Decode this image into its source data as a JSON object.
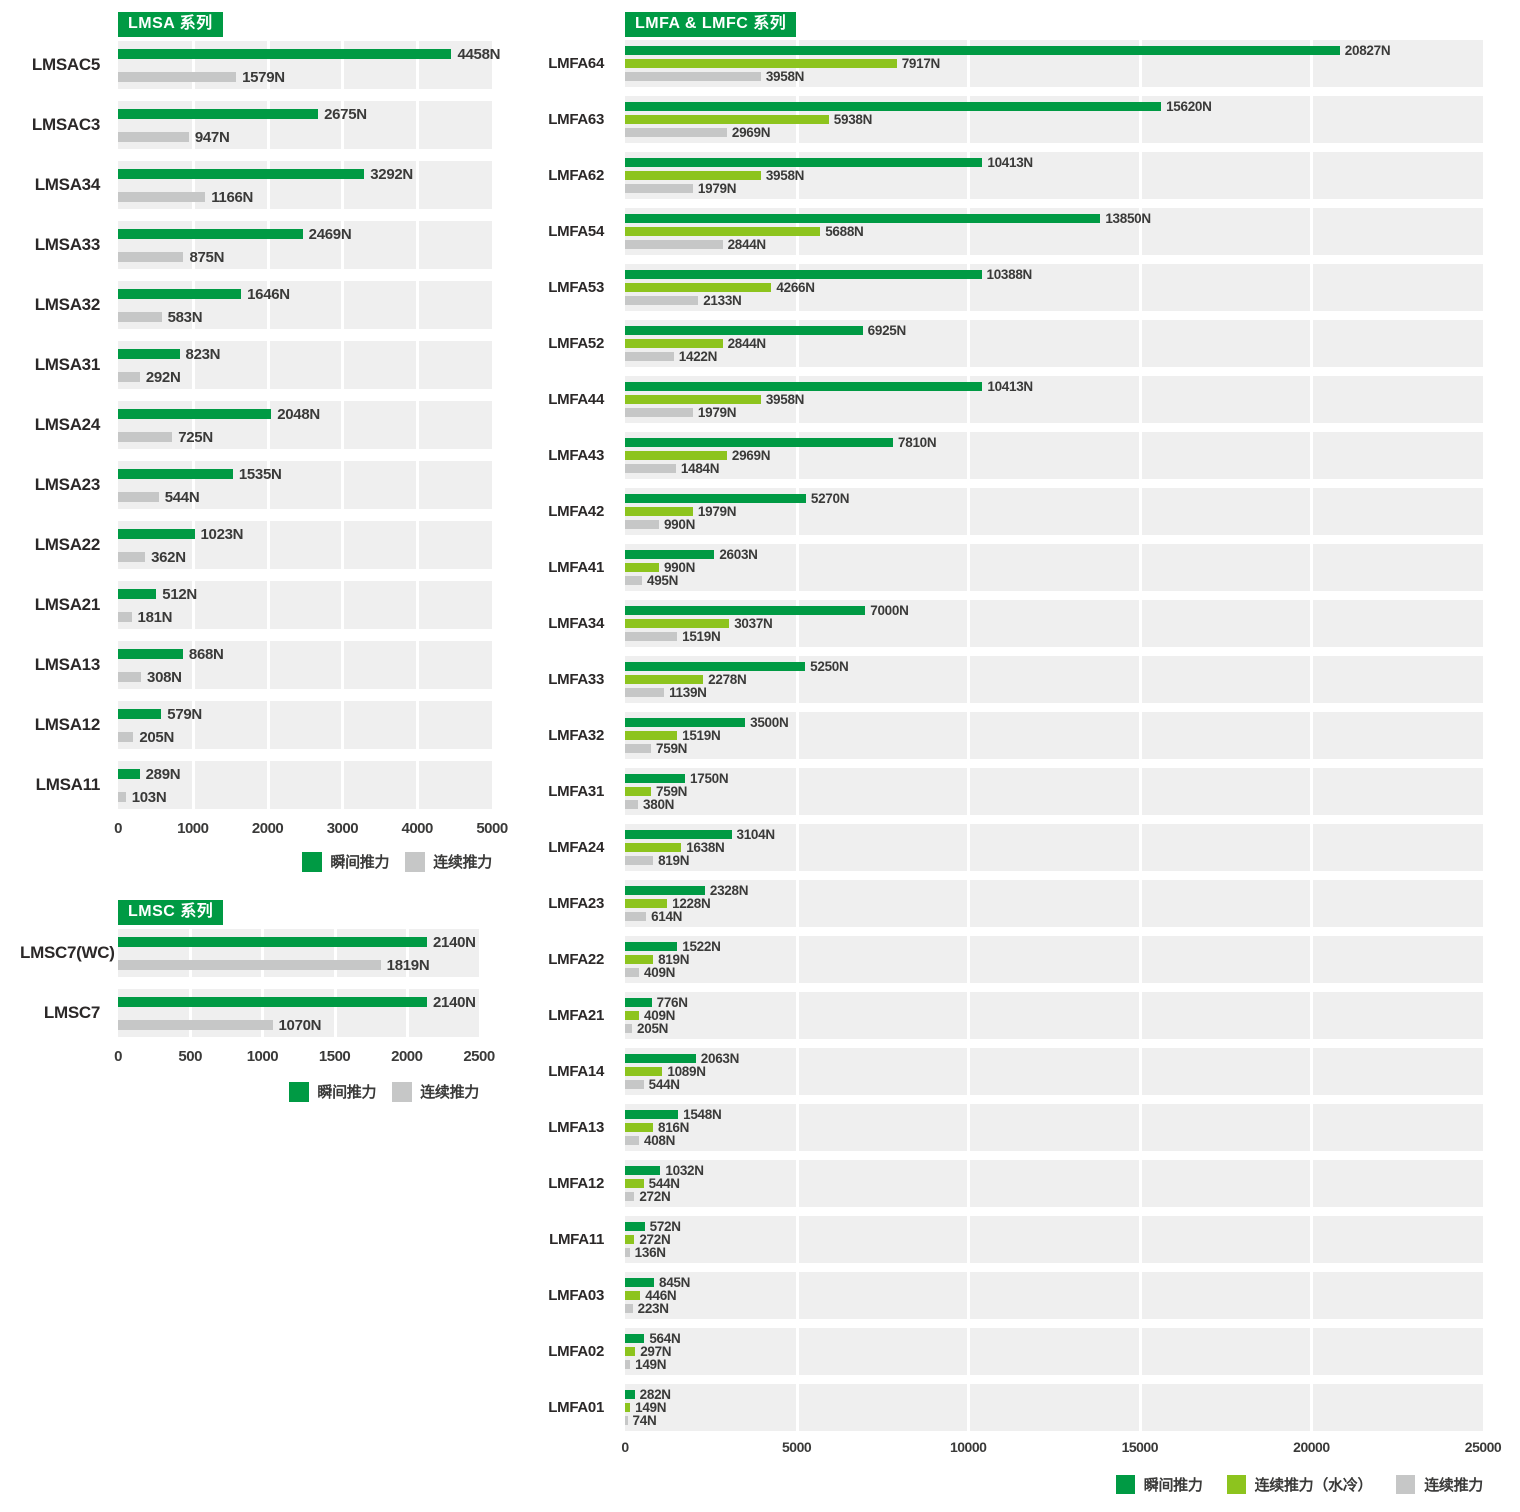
{
  "colors": {
    "instant_green": "#009a44",
    "continuous_water_cooled_green": "#8dc41e",
    "continuous_gray": "#c6c7c7",
    "band_background": "#efefef",
    "badge_background": "#009a44",
    "badge_text": "#ffffff"
  },
  "chart_data": [
    {
      "type": "bar",
      "orientation": "horizontal",
      "title": "LMSA 系列",
      "unit": "N",
      "xlabel": "",
      "ylabel": "",
      "xlim": [
        0,
        5000
      ],
      "xticks": [
        0,
        1000,
        2000,
        3000,
        4000,
        5000
      ],
      "grid": true,
      "legend_position": "bottom-right",
      "series": [
        {
          "name": "瞬间推力",
          "color": "#009a44"
        },
        {
          "name": "连续推力",
          "color": "#c6c7c7"
        }
      ],
      "categories": [
        "LMSAC5",
        "LMSAC3",
        "LMSA34",
        "LMSA33",
        "LMSA32",
        "LMSA31",
        "LMSA24",
        "LMSA23",
        "LMSA22",
        "LMSA21",
        "LMSA13",
        "LMSA12",
        "LMSA11"
      ],
      "rows": [
        {
          "model": "LMSAC5",
          "values": [
            4458,
            1579
          ]
        },
        {
          "model": "LMSAC3",
          "values": [
            2675,
            947
          ]
        },
        {
          "model": "LMSA34",
          "values": [
            3292,
            1166
          ]
        },
        {
          "model": "LMSA33",
          "values": [
            2469,
            875
          ]
        },
        {
          "model": "LMSA32",
          "values": [
            1646,
            583
          ]
        },
        {
          "model": "LMSA31",
          "values": [
            823,
            292
          ]
        },
        {
          "model": "LMSA24",
          "values": [
            2048,
            725
          ]
        },
        {
          "model": "LMSA23",
          "values": [
            1535,
            544
          ]
        },
        {
          "model": "LMSA22",
          "values": [
            1023,
            362
          ]
        },
        {
          "model": "LMSA21",
          "values": [
            512,
            181
          ]
        },
        {
          "model": "LMSA13",
          "values": [
            868,
            308
          ]
        },
        {
          "model": "LMSA12",
          "values": [
            579,
            205
          ]
        },
        {
          "model": "LMSA11",
          "values": [
            289,
            103
          ]
        }
      ]
    },
    {
      "type": "bar",
      "orientation": "horizontal",
      "title": "LMSC 系列",
      "unit": "N",
      "xlabel": "",
      "ylabel": "",
      "xlim": [
        0,
        2500
      ],
      "xticks": [
        0,
        500,
        1000,
        1500,
        2000,
        2500
      ],
      "grid": true,
      "legend_position": "bottom-right",
      "series": [
        {
          "name": "瞬间推力",
          "color": "#009a44"
        },
        {
          "name": "连续推力",
          "color": "#c6c7c7"
        }
      ],
      "categories": [
        "LMSC7(WC)",
        "LMSC7"
      ],
      "rows": [
        {
          "model": "LMSC7(WC)",
          "values": [
            2140,
            1819
          ]
        },
        {
          "model": "LMSC7",
          "values": [
            2140,
            1070
          ]
        }
      ]
    },
    {
      "type": "bar",
      "orientation": "horizontal",
      "title": "LMFA & LMFC 系列",
      "unit": "N",
      "xlabel": "",
      "ylabel": "",
      "xlim": [
        0,
        25000
      ],
      "xticks": [
        0,
        5000,
        10000,
        15000,
        20000,
        25000
      ],
      "grid": true,
      "legend_position": "bottom-right",
      "series": [
        {
          "name": "瞬间推力",
          "color": "#009a44"
        },
        {
          "name": "连续推力（水冷）",
          "color": "#8dc41e"
        },
        {
          "name": "连续推力",
          "color": "#c6c7c7"
        }
      ],
      "categories": [
        "LMFA64",
        "LMFA63",
        "LMFA62",
        "LMFA54",
        "LMFA53",
        "LMFA52",
        "LMFA44",
        "LMFA43",
        "LMFA42",
        "LMFA41",
        "LMFA34",
        "LMFA33",
        "LMFA32",
        "LMFA31",
        "LMFA24",
        "LMFA23",
        "LMFA22",
        "LMFA21",
        "LMFA14",
        "LMFA13",
        "LMFA12",
        "LMFA11",
        "LMFA03",
        "LMFA02",
        "LMFA01"
      ],
      "rows": [
        {
          "model": "LMFA64",
          "values": [
            20827,
            7917,
            3958
          ]
        },
        {
          "model": "LMFA63",
          "values": [
            15620,
            5938,
            2969
          ]
        },
        {
          "model": "LMFA62",
          "values": [
            10413,
            3958,
            1979
          ]
        },
        {
          "model": "LMFA54",
          "values": [
            13850,
            5688,
            2844
          ]
        },
        {
          "model": "LMFA53",
          "values": [
            10388,
            4266,
            2133
          ]
        },
        {
          "model": "LMFA52",
          "values": [
            6925,
            2844,
            1422
          ]
        },
        {
          "model": "LMFA44",
          "values": [
            10413,
            3958,
            1979
          ]
        },
        {
          "model": "LMFA43",
          "values": [
            7810,
            2969,
            1484
          ]
        },
        {
          "model": "LMFA42",
          "values": [
            5270,
            1979,
            990
          ]
        },
        {
          "model": "LMFA41",
          "values": [
            2603,
            990,
            495
          ]
        },
        {
          "model": "LMFA34",
          "values": [
            7000,
            3037,
            1519
          ]
        },
        {
          "model": "LMFA33",
          "values": [
            5250,
            2278,
            1139
          ]
        },
        {
          "model": "LMFA32",
          "values": [
            3500,
            1519,
            759
          ]
        },
        {
          "model": "LMFA31",
          "values": [
            1750,
            759,
            380
          ]
        },
        {
          "model": "LMFA24",
          "values": [
            3104,
            1638,
            819
          ]
        },
        {
          "model": "LMFA23",
          "values": [
            2328,
            1228,
            614
          ]
        },
        {
          "model": "LMFA22",
          "values": [
            1522,
            819,
            409
          ]
        },
        {
          "model": "LMFA21",
          "values": [
            776,
            409,
            205
          ]
        },
        {
          "model": "LMFA14",
          "values": [
            2063,
            1089,
            544
          ]
        },
        {
          "model": "LMFA13",
          "values": [
            1548,
            816,
            408
          ]
        },
        {
          "model": "LMFA12",
          "values": [
            1032,
            544,
            272
          ]
        },
        {
          "model": "LMFA11",
          "values": [
            572,
            272,
            136
          ]
        },
        {
          "model": "LMFA03",
          "values": [
            845,
            446,
            223
          ]
        },
        {
          "model": "LMFA02",
          "values": [
            564,
            297,
            149
          ]
        },
        {
          "model": "LMFA01",
          "values": [
            282,
            149,
            74
          ]
        }
      ]
    }
  ]
}
